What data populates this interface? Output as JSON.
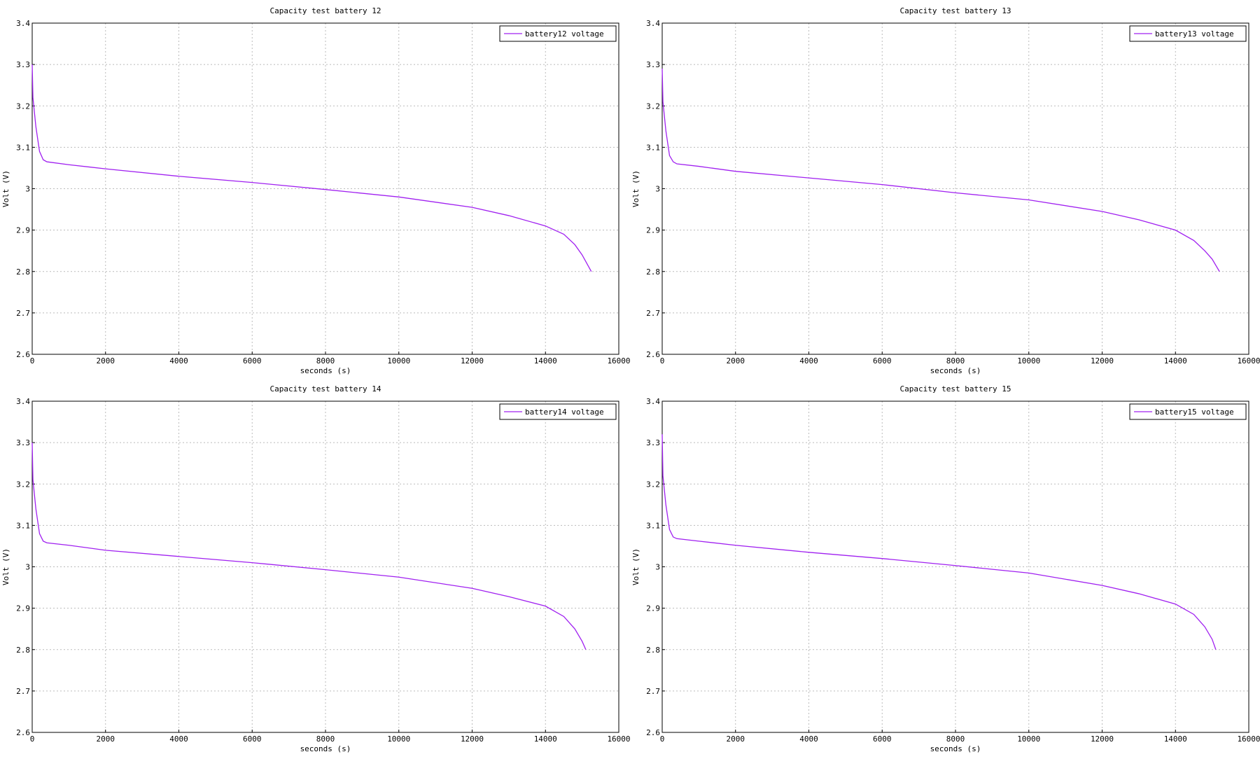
{
  "chart_data": [
    {
      "type": "line",
      "title": "Capacity test battery 12",
      "xlabel": "seconds (s)",
      "ylabel": "Volt (V)",
      "x": [
        0,
        20,
        100,
        200,
        300,
        400,
        1000,
        2000,
        4000,
        6000,
        8000,
        10000,
        12000,
        13000,
        14000,
        14500,
        14800,
        15000,
        15250
      ],
      "series": [
        {
          "name": "battery12 voltage",
          "color": "#a020f0",
          "values": [
            3.3,
            3.22,
            3.15,
            3.09,
            3.07,
            3.065,
            3.058,
            3.048,
            3.03,
            3.015,
            2.998,
            2.98,
            2.955,
            2.935,
            2.91,
            2.89,
            2.865,
            2.84,
            2.8
          ]
        }
      ],
      "xlim": [
        0,
        16000
      ],
      "xticks": [
        0,
        2000,
        4000,
        6000,
        8000,
        10000,
        12000,
        14000,
        16000
      ],
      "ylim": [
        2.6,
        3.4
      ],
      "yticks": [
        2.6,
        2.7,
        2.8,
        2.9,
        3,
        3.1,
        3.2,
        3.3,
        3.4
      ],
      "grid": true,
      "legend": "upper right"
    },
    {
      "type": "line",
      "title": "Capacity test battery 13",
      "xlabel": "seconds (s)",
      "ylabel": "Volt (V)",
      "x": [
        0,
        20,
        100,
        200,
        300,
        400,
        1000,
        2000,
        4000,
        6000,
        8000,
        10000,
        12000,
        13000,
        14000,
        14500,
        14800,
        15000,
        15200
      ],
      "series": [
        {
          "name": "battery13 voltage",
          "color": "#a020f0",
          "values": [
            3.29,
            3.21,
            3.14,
            3.08,
            3.065,
            3.06,
            3.054,
            3.042,
            3.026,
            3.01,
            2.99,
            2.973,
            2.945,
            2.925,
            2.9,
            2.875,
            2.85,
            2.83,
            2.8
          ]
        }
      ],
      "xlim": [
        0,
        16000
      ],
      "xticks": [
        0,
        2000,
        4000,
        6000,
        8000,
        10000,
        12000,
        14000,
        16000
      ],
      "ylim": [
        2.6,
        3.4
      ],
      "yticks": [
        2.6,
        2.7,
        2.8,
        2.9,
        3,
        3.1,
        3.2,
        3.3,
        3.4
      ],
      "grid": true,
      "legend": "upper right"
    },
    {
      "type": "line",
      "title": "Capacity test battery 14",
      "xlabel": "seconds (s)",
      "ylabel": "Volt (V)",
      "x": [
        0,
        20,
        100,
        200,
        300,
        400,
        1000,
        2000,
        4000,
        6000,
        8000,
        10000,
        12000,
        13000,
        14000,
        14500,
        14800,
        15000,
        15100
      ],
      "series": [
        {
          "name": "battery14 voltage",
          "color": "#a020f0",
          "values": [
            3.3,
            3.21,
            3.14,
            3.08,
            3.062,
            3.058,
            3.052,
            3.04,
            3.025,
            3.01,
            2.993,
            2.975,
            2.948,
            2.928,
            2.905,
            2.88,
            2.85,
            2.82,
            2.8
          ]
        }
      ],
      "xlim": [
        0,
        16000
      ],
      "xticks": [
        0,
        2000,
        4000,
        6000,
        8000,
        10000,
        12000,
        14000,
        16000
      ],
      "ylim": [
        2.6,
        3.4
      ],
      "yticks": [
        2.6,
        2.7,
        2.8,
        2.9,
        3,
        3.1,
        3.2,
        3.3,
        3.4
      ],
      "grid": true,
      "legend": "upper right"
    },
    {
      "type": "line",
      "title": "Capacity test battery 15",
      "xlabel": "seconds (s)",
      "ylabel": "Volt (V)",
      "x": [
        0,
        20,
        100,
        200,
        300,
        400,
        1000,
        2000,
        4000,
        6000,
        8000,
        10000,
        12000,
        13000,
        14000,
        14500,
        14800,
        15000,
        15100
      ],
      "series": [
        {
          "name": "battery15 voltage",
          "color": "#a020f0",
          "values": [
            3.32,
            3.22,
            3.15,
            3.09,
            3.072,
            3.068,
            3.062,
            3.052,
            3.035,
            3.02,
            3.003,
            2.985,
            2.955,
            2.935,
            2.91,
            2.885,
            2.855,
            2.825,
            2.8
          ]
        }
      ],
      "xlim": [
        0,
        16000
      ],
      "xticks": [
        0,
        2000,
        4000,
        6000,
        8000,
        10000,
        12000,
        14000,
        16000
      ],
      "ylim": [
        2.6,
        3.4
      ],
      "yticks": [
        2.6,
        2.7,
        2.8,
        2.9,
        3,
        3.1,
        3.2,
        3.3,
        3.4
      ],
      "grid": true,
      "legend": "upper right"
    }
  ]
}
